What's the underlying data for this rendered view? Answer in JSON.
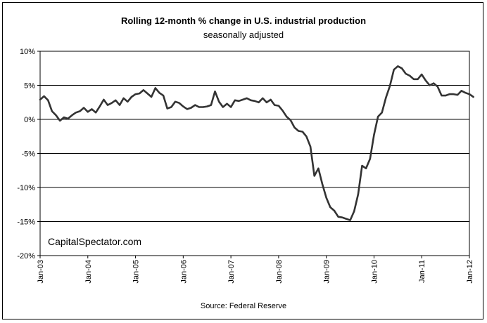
{
  "chart_data": {
    "type": "line",
    "title": "Rolling 12-month %  change in U.S. industrial production",
    "subtitle": "seasonally adjusted",
    "xlabel": "",
    "ylabel": "",
    "source": "Source: Federal Reserve",
    "watermark": "CapitalSpectator.com",
    "ylim": [
      -20,
      10
    ],
    "y_ticks": [
      10,
      5,
      0,
      -5,
      -10,
      -15,
      -20
    ],
    "y_tick_labels": [
      "10%",
      "5%",
      "0%",
      "-5%",
      "-10%",
      "-15%",
      "-20%"
    ],
    "x_tick_labels": [
      "Jan-03",
      "Jan-04",
      "Jan-05",
      "Jan-06",
      "Jan-07",
      "Jan-08",
      "Jan-09",
      "Jan-10",
      "Jan-11",
      "Jan-12"
    ],
    "x_range": [
      "Jan-03",
      "Jan-12"
    ],
    "grid": "horizontal",
    "line_color": "#333333",
    "series": [
      {
        "values": [
          2.9,
          3.4,
          2.8,
          1.2,
          0.6,
          -0.2,
          0.3,
          0.1,
          0.6,
          1.0,
          1.2,
          1.7,
          1.1,
          1.5,
          1.0,
          1.9,
          2.9,
          2.1,
          2.4,
          2.8,
          2.1,
          3.1,
          2.6,
          3.3,
          3.7,
          3.8,
          4.3,
          3.8,
          3.3,
          4.6,
          3.9,
          3.5,
          1.6,
          1.8,
          2.6,
          2.4,
          1.9,
          1.5,
          1.7,
          2.1,
          1.8,
          1.8,
          1.9,
          2.1,
          4.1,
          2.6,
          1.8,
          2.3,
          1.8,
          2.8,
          2.7,
          2.9,
          3.1,
          2.8,
          2.7,
          2.5,
          3.1,
          2.5,
          2.9,
          2.1,
          2.0,
          1.3,
          0.4,
          -0.1,
          -1.2,
          -1.7,
          -1.8,
          -2.5,
          -4.0,
          -8.3,
          -7.2,
          -9.5,
          -11.5,
          -12.9,
          -13.4,
          -14.3,
          -14.4,
          -14.6,
          -14.8,
          -13.5,
          -11.0,
          -6.8,
          -7.2,
          -5.8,
          -2.3,
          0.4,
          1.0,
          3.2,
          4.9,
          7.3,
          7.8,
          7.5,
          6.7,
          6.4,
          5.9,
          5.9,
          6.6,
          5.7,
          5.0,
          5.3,
          4.8,
          3.5,
          3.5,
          3.7,
          3.7,
          3.6,
          4.2,
          3.9,
          3.7,
          3.3
        ]
      }
    ]
  }
}
